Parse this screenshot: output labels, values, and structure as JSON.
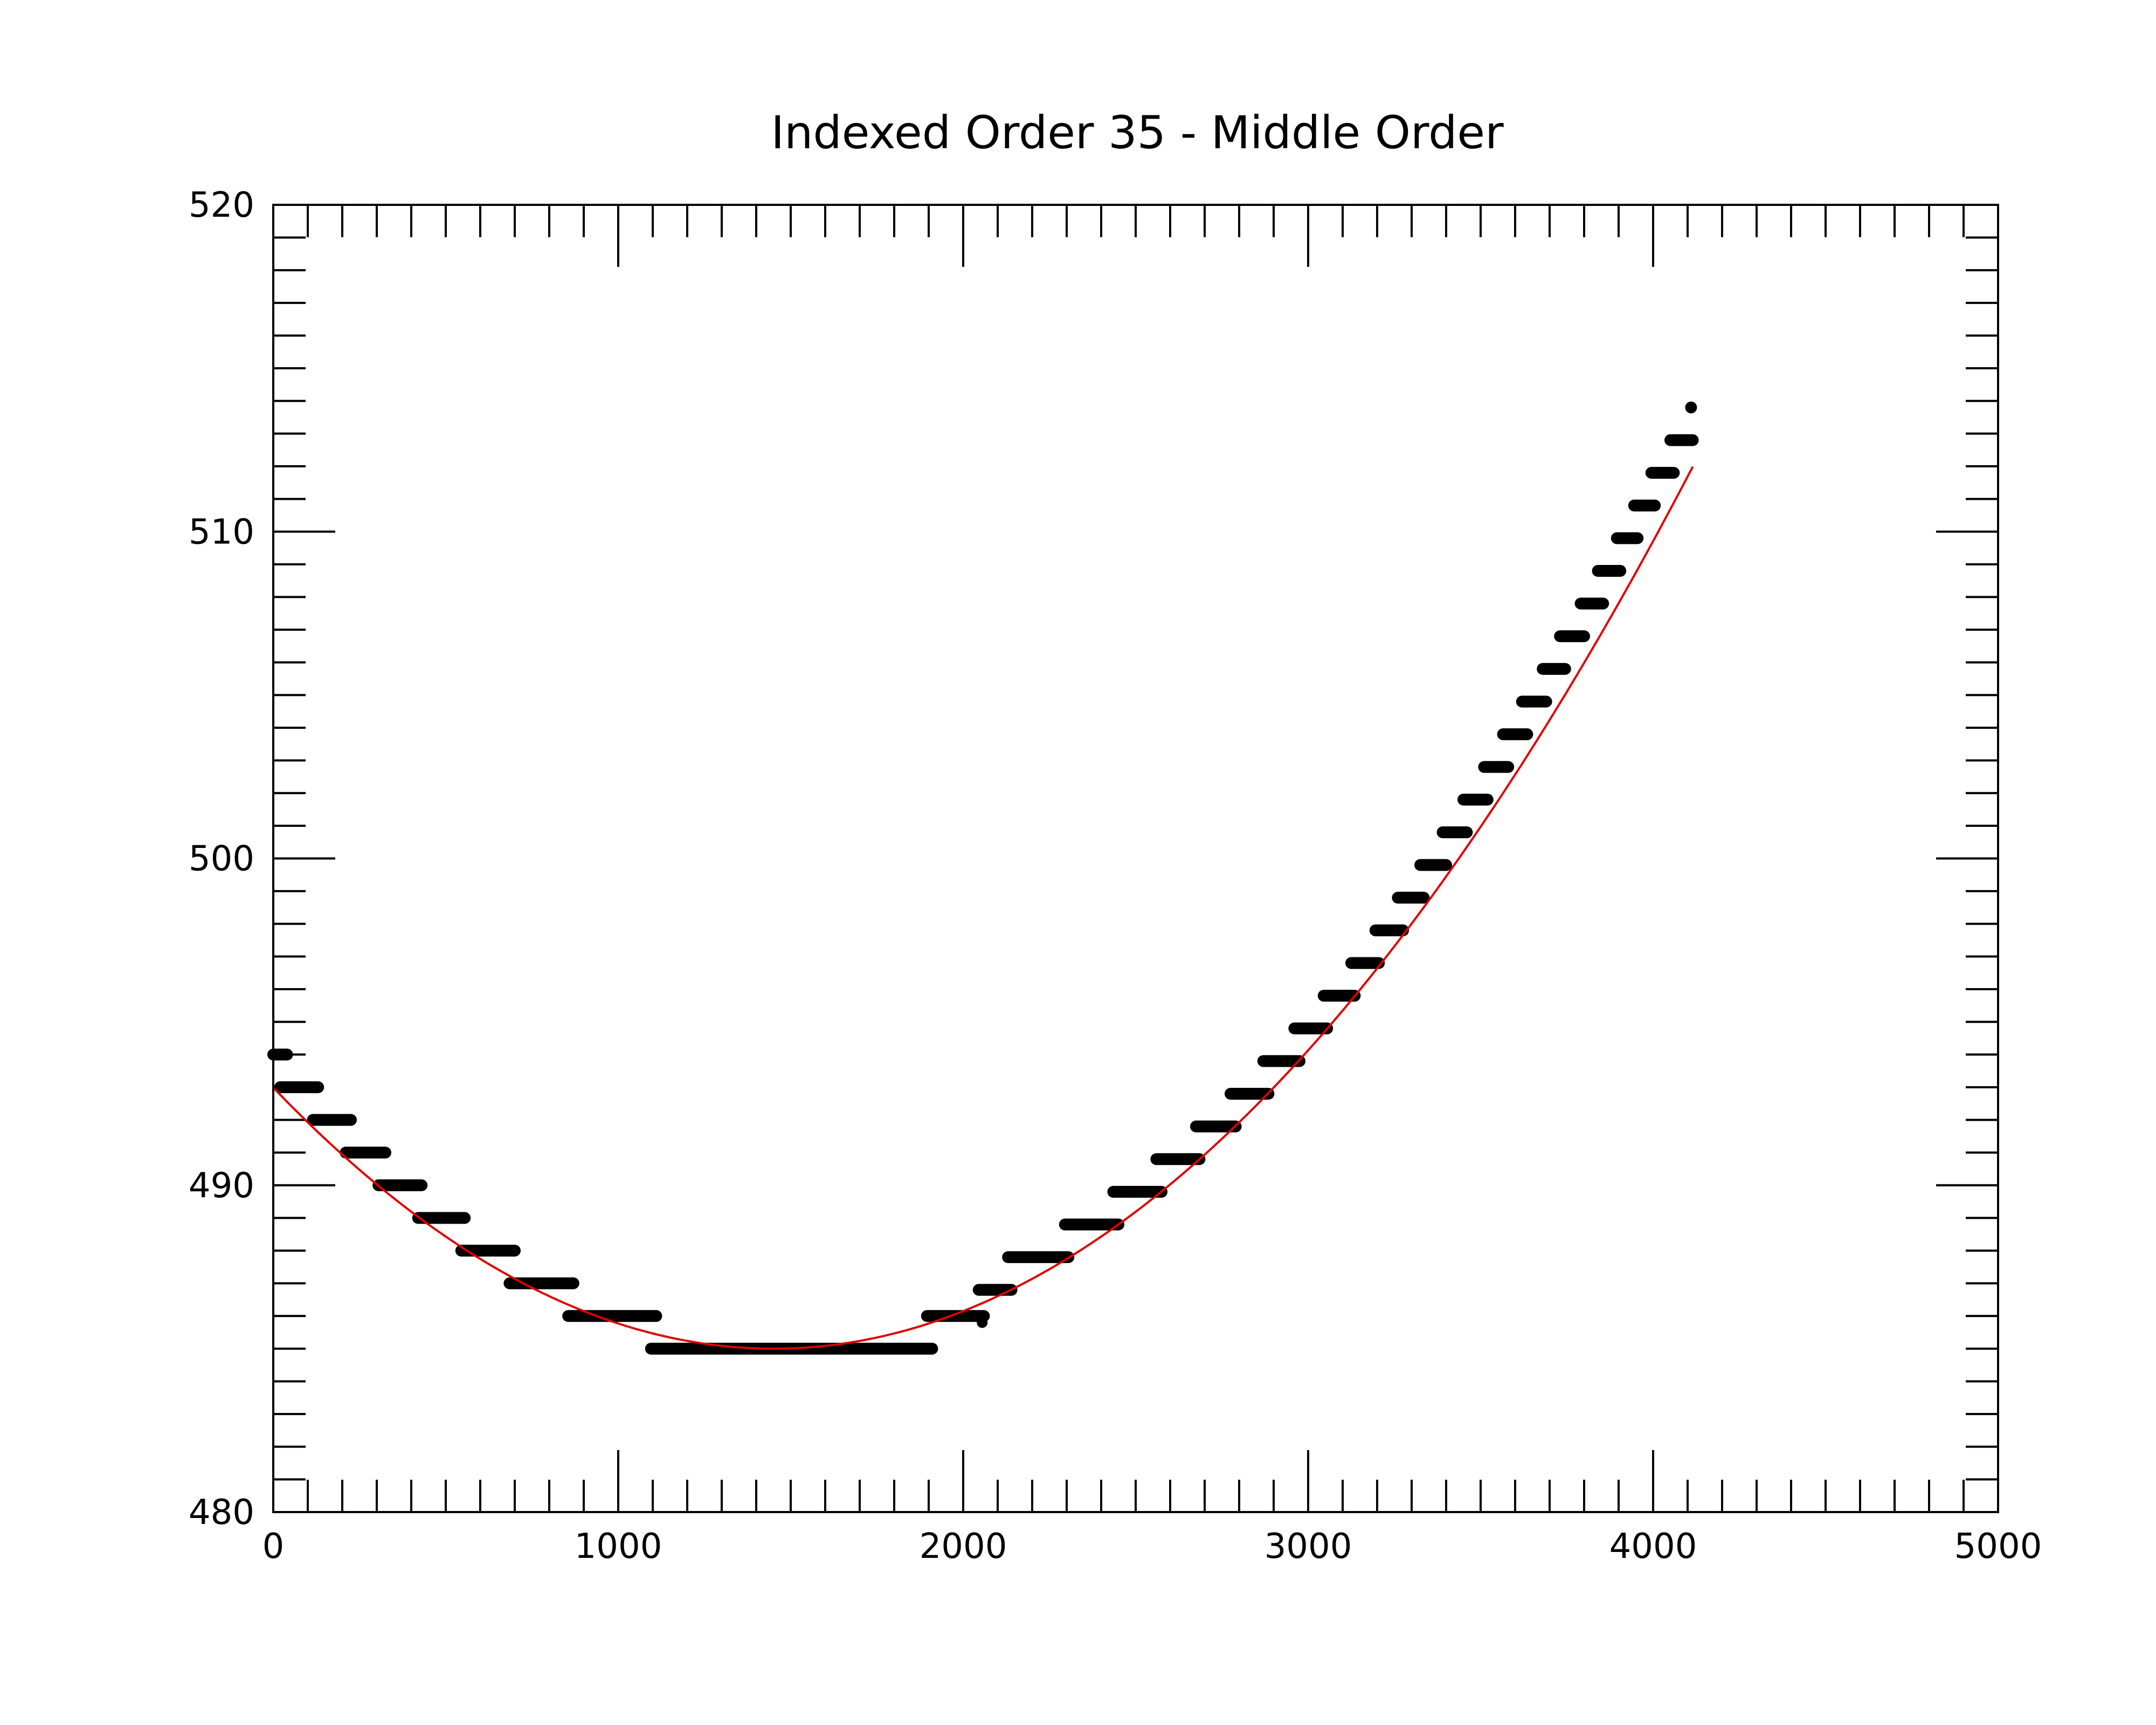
{
  "chart_data": {
    "type": "scatter",
    "title": "Indexed Order 35 -  Middle Order",
    "xlabel": "",
    "ylabel": "",
    "xlim": [
      0,
      5000
    ],
    "ylim": [
      480,
      520
    ],
    "x_ticks": [
      "0",
      "1000",
      "2000",
      "3000",
      "4000",
      "5000"
    ],
    "y_ticks": [
      "480",
      "490",
      "500",
      "510",
      "520"
    ],
    "grid": false,
    "legend": "none",
    "colors": {
      "points": "#000000",
      "fit": "#e00000",
      "axes": "#000000",
      "background": "#ffffff"
    },
    "series": [
      {
        "kind": "segments",
        "segments": [
          {
            "x0": 0,
            "x1": 40,
            "y": 494
          },
          {
            "x0": 20,
            "x1": 130,
            "y": 493
          },
          {
            "x0": 115,
            "x1": 225,
            "y": 492
          },
          {
            "x0": 210,
            "x1": 325,
            "y": 491
          },
          {
            "x0": 305,
            "x1": 430,
            "y": 490
          },
          {
            "x0": 420,
            "x1": 555,
            "y": 489
          },
          {
            "x0": 545,
            "x1": 700,
            "y": 488
          },
          {
            "x0": 685,
            "x1": 870,
            "y": 487
          },
          {
            "x0": 855,
            "x1": 1110,
            "y": 486
          },
          {
            "x0": 1095,
            "x1": 1910,
            "y": 485
          },
          {
            "x0": 1895,
            "x1": 2060,
            "y": 486
          },
          {
            "x0": 2045,
            "x1": 2140,
            "y": 486.8
          },
          {
            "x0": 2130,
            "x1": 2305,
            "y": 487.8
          },
          {
            "x0": 2295,
            "x1": 2450,
            "y": 488.8
          },
          {
            "x0": 2435,
            "x1": 2575,
            "y": 489.8
          },
          {
            "x0": 2560,
            "x1": 2685,
            "y": 490.8
          },
          {
            "x0": 2675,
            "x1": 2790,
            "y": 491.8
          },
          {
            "x0": 2775,
            "x1": 2885,
            "y": 492.8
          },
          {
            "x0": 2870,
            "x1": 2975,
            "y": 493.8
          },
          {
            "x0": 2960,
            "x1": 3055,
            "y": 494.8
          },
          {
            "x0": 3045,
            "x1": 3135,
            "y": 495.8
          },
          {
            "x0": 3125,
            "x1": 3205,
            "y": 496.8
          },
          {
            "x0": 3195,
            "x1": 3275,
            "y": 497.8
          },
          {
            "x0": 3260,
            "x1": 3335,
            "y": 498.8
          },
          {
            "x0": 3325,
            "x1": 3400,
            "y": 499.8
          },
          {
            "x0": 3390,
            "x1": 3460,
            "y": 500.8
          },
          {
            "x0": 3450,
            "x1": 3520,
            "y": 501.8
          },
          {
            "x0": 3510,
            "x1": 3580,
            "y": 502.8
          },
          {
            "x0": 3565,
            "x1": 3635,
            "y": 503.8
          },
          {
            "x0": 3620,
            "x1": 3690,
            "y": 504.8
          },
          {
            "x0": 3680,
            "x1": 3745,
            "y": 505.8
          },
          {
            "x0": 3730,
            "x1": 3800,
            "y": 506.8
          },
          {
            "x0": 3790,
            "x1": 3855,
            "y": 507.8
          },
          {
            "x0": 3840,
            "x1": 3905,
            "y": 508.8
          },
          {
            "x0": 3895,
            "x1": 3955,
            "y": 509.8
          },
          {
            "x0": 3945,
            "x1": 4005,
            "y": 510.8
          },
          {
            "x0": 3995,
            "x1": 4060,
            "y": 511.8
          },
          {
            "x0": 4050,
            "x1": 4115,
            "y": 512.8
          },
          {
            "x0": 4110,
            "x1": 4115,
            "y": 513.8
          }
        ],
        "extra_points": [
          {
            "x": 2055,
            "y": 485.8
          }
        ]
      },
      {
        "kind": "fit-curve",
        "x_range": [
          0,
          4115
        ],
        "vertex": {
          "x": 1450,
          "y": 485
        },
        "curvature": 3.8e-06
      }
    ]
  }
}
